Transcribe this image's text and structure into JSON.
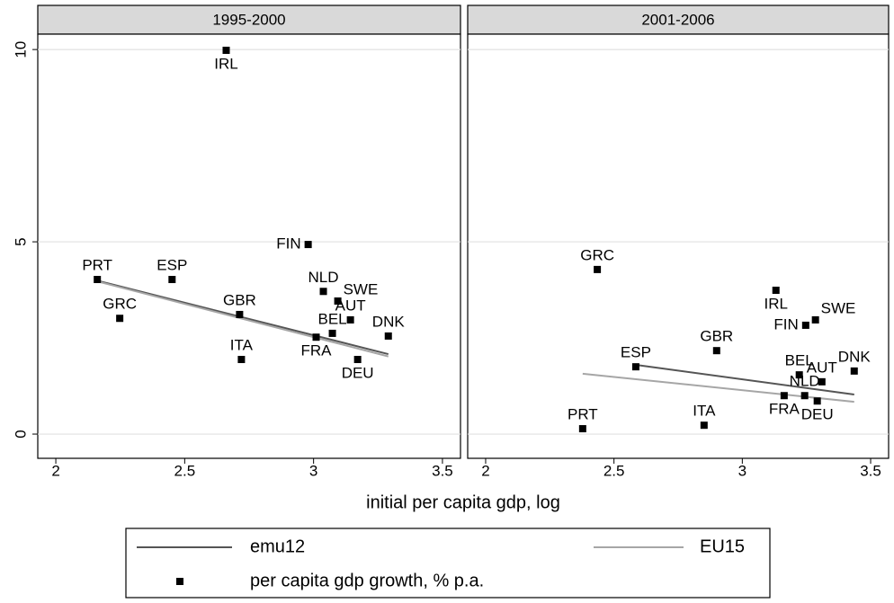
{
  "chart_data": [
    {
      "type": "scatter",
      "title": "1995-2000",
      "xlabel": "initial per capita gdp, log",
      "xlim": [
        1.93,
        3.57
      ],
      "ylim": [
        -0.63,
        10.4
      ],
      "xticks": [
        2,
        2.5,
        3,
        3.5
      ],
      "yticks": [
        0,
        5,
        10
      ],
      "grid": true,
      "series": [
        {
          "name": "emu12",
          "type": "line",
          "color": "#555555",
          "x": [
            2.161,
            3.29
          ],
          "values": [
            3.99,
            2.08
          ]
        },
        {
          "name": "EU15",
          "type": "line",
          "color": "#a6a6a6",
          "x": [
            2.161,
            3.29
          ],
          "values": [
            3.97,
            2.02
          ]
        },
        {
          "name": "per capita gdp growth, % p.a.",
          "type": "scatter",
          "color": "#000000",
          "labels": [
            "IRL",
            "FIN",
            "PRT",
            "ESP",
            "GRC",
            "GBR",
            "NLD",
            "SWE",
            "AUT",
            "BEL",
            "DNK",
            "FRA",
            "ITA",
            "DEU"
          ],
          "x": [
            2.661,
            2.979,
            2.161,
            2.451,
            2.248,
            2.713,
            3.038,
            3.094,
            3.143,
            3.073,
            3.29,
            3.01,
            2.72,
            3.171
          ],
          "values": [
            9.98,
            4.93,
            4.02,
            4.02,
            3.01,
            3.11,
            3.71,
            3.46,
            2.97,
            2.62,
            2.55,
            2.52,
            1.94,
            1.94
          ]
        }
      ]
    },
    {
      "type": "scatter",
      "title": "2001-2006",
      "xlim": [
        1.93,
        3.57
      ],
      "ylim": [
        -0.63,
        10.4
      ],
      "xticks": [
        2,
        2.5,
        3,
        3.5
      ],
      "yticks": [
        0,
        5,
        10
      ],
      "grid": true,
      "series": [
        {
          "type": "line",
          "color": "#555555",
          "x": [
            2.585,
            3.436
          ],
          "values": [
            1.8,
            1.03
          ]
        },
        {
          "type": "line",
          "color": "#a6a6a6",
          "x": [
            2.378,
            3.436
          ],
          "values": [
            1.57,
            0.84
          ]
        },
        {
          "type": "scatter",
          "color": "#000000",
          "labels": [
            "GRC",
            "IRL",
            "SWE",
            "FIN",
            "GBR",
            "ESP",
            "BEL",
            "DNK",
            "AUT",
            "NLD",
            "FRA",
            "DEU",
            "ITA",
            "PRT"
          ],
          "x": [
            2.435,
            3.131,
            3.285,
            3.247,
            2.9,
            2.585,
            3.222,
            3.436,
            3.31,
            3.243,
            3.163,
            3.292,
            2.851,
            2.378
          ],
          "values": [
            4.28,
            3.74,
            2.97,
            2.83,
            2.17,
            1.75,
            1.54,
            1.64,
            1.36,
            1.0,
            1.0,
            0.86,
            0.23,
            0.14
          ]
        }
      ]
    }
  ]
}
